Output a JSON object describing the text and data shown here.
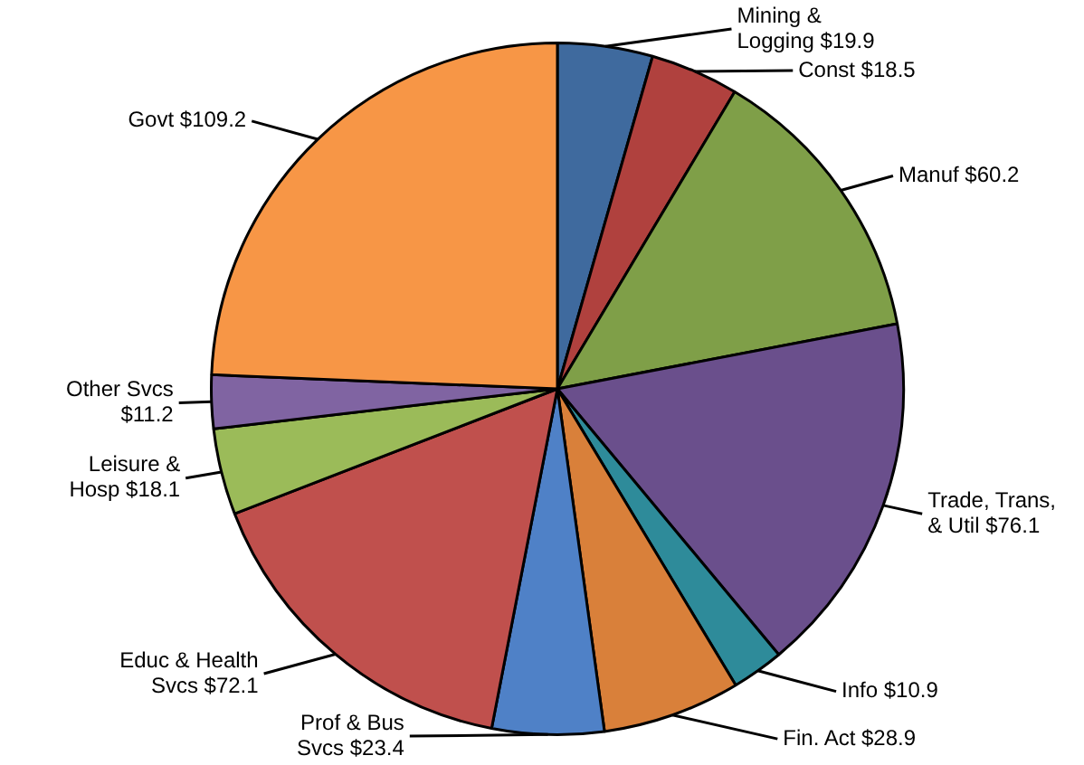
{
  "chart_data": {
    "type": "pie",
    "categories": [
      "Mining & Logging",
      "Const",
      "Manuf",
      "Trade, Trans, & Util",
      "Info",
      "Fin. Act",
      "Prof & Bus Svcs",
      "Educ & Health Svcs",
      "Leisure & Hosp",
      "Other Svcs",
      "Govt"
    ],
    "values": [
      19.9,
      18.5,
      60.2,
      76.1,
      10.9,
      28.9,
      23.4,
      72.1,
      18.1,
      11.2,
      109.2
    ],
    "value_labels": [
      "$19.9",
      "$18.5",
      "$60.2",
      "$76.1",
      "$10.9",
      "$28.9",
      "$23.4",
      "$72.1",
      "$18.1",
      "$11.2",
      "$109.2"
    ],
    "colors": [
      "#3f6a9e",
      "#b0413e",
      "#7f9f48",
      "#6a4f8c",
      "#2e8b9a",
      "#d9803a",
      "#4f81c7",
      "#c0504d",
      "#9bbb59",
      "#8064a2",
      "#f79646"
    ],
    "legend": false
  }
}
